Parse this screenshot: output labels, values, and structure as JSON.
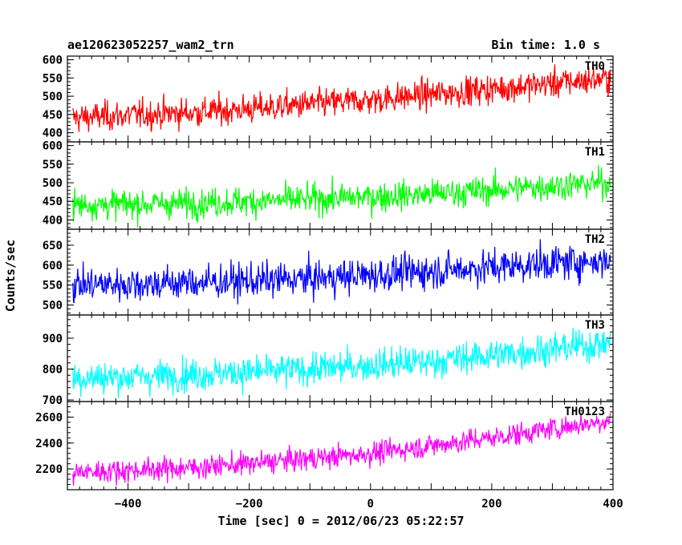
{
  "header": {
    "left_title": "ae120623052257_wam2_trn",
    "right_title": "Bin time: 1.0 s"
  },
  "chart_data": {
    "type": "line",
    "xlabel": "Time [sec] 0 = 2012/06/23 05:22:57",
    "ylabel": "Counts/sec",
    "xlim": [
      -500,
      400
    ],
    "x_ticks": [
      -400,
      -200,
      0,
      200,
      400
    ],
    "x_tick_labels": [
      "−400",
      "−200",
      "0",
      "200",
      "400"
    ],
    "series": [
      {
        "name": "TH0",
        "color": "#ff0000",
        "ylim": [
          375,
          610
        ],
        "y_ticks": [
          400,
          450,
          500,
          550,
          600
        ],
        "y_tick_labels": [
          "400",
          "450",
          "500",
          "550",
          "600"
        ],
        "x": [
          -500,
          -400,
          -300,
          -200,
          -100,
          0,
          100,
          200,
          300,
          400
        ],
        "values": [
          440,
          448,
          455,
          465,
          478,
          490,
          505,
          520,
          535,
          550
        ]
      },
      {
        "name": "TH1",
        "color": "#00ff00",
        "ylim": [
          375,
          610
        ],
        "y_ticks": [
          400,
          450,
          500,
          550,
          600
        ],
        "y_tick_labels": [
          "400",
          "450",
          "500",
          "550",
          "600"
        ],
        "x": [
          -500,
          -400,
          -300,
          -200,
          -100,
          0,
          100,
          200,
          300,
          400
        ],
        "values": [
          440,
          442,
          445,
          450,
          455,
          462,
          470,
          480,
          492,
          500
        ]
      },
      {
        "name": "TH2",
        "color": "#0000ff",
        "ylim": [
          475,
          690
        ],
        "y_ticks": [
          500,
          550,
          600,
          650
        ],
        "y_tick_labels": [
          "500",
          "550",
          "600",
          "650"
        ],
        "x": [
          -500,
          -400,
          -300,
          -200,
          -100,
          0,
          100,
          200,
          300,
          400
        ],
        "values": [
          550,
          553,
          556,
          560,
          566,
          575,
          585,
          595,
          605,
          612
        ]
      },
      {
        "name": "TH3",
        "color": "#00ffff",
        "ylim": [
          695,
          975
        ],
        "y_ticks": [
          700,
          800,
          900
        ],
        "y_tick_labels": [
          "700",
          "800",
          "900"
        ],
        "x": [
          -500,
          -400,
          -300,
          -200,
          -100,
          0,
          100,
          200,
          300,
          400
        ],
        "values": [
          770,
          775,
          782,
          790,
          800,
          812,
          825,
          845,
          865,
          885
        ]
      },
      {
        "name": "TH0123",
        "color": "#ff00ff",
        "ylim": [
          2040,
          2720
        ],
        "y_ticks": [
          2200,
          2400,
          2600
        ],
        "y_tick_labels": [
          "2200",
          "2400",
          "2600"
        ],
        "x": [
          -500,
          -400,
          -300,
          -200,
          -100,
          0,
          100,
          200,
          300,
          400
        ],
        "values": [
          2170,
          2190,
          2210,
          2240,
          2280,
          2320,
          2380,
          2440,
          2510,
          2580
        ]
      }
    ]
  }
}
